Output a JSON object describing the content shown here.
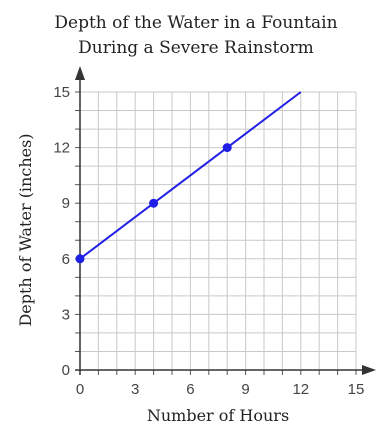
{
  "chart_data": {
    "type": "line",
    "title": [
      "Depth of the Water in a Fountain",
      "During a Severe Rainstorm"
    ],
    "xlabel": "Number of Hours",
    "ylabel": "Depth of Water (inches)",
    "xlim": [
      0,
      15
    ],
    "ylim": [
      0,
      15
    ],
    "xticks": [
      0,
      3,
      6,
      9,
      12,
      15
    ],
    "yticks": [
      0,
      3,
      6,
      9,
      12,
      15
    ],
    "grid": true,
    "series": [
      {
        "line": {
          "x": [
            0,
            12
          ],
          "y": [
            6,
            15
          ]
        },
        "points": {
          "x": [
            0,
            4,
            8
          ],
          "y": [
            6,
            9,
            12
          ]
        },
        "color": "#1f1fe6"
      }
    ]
  }
}
